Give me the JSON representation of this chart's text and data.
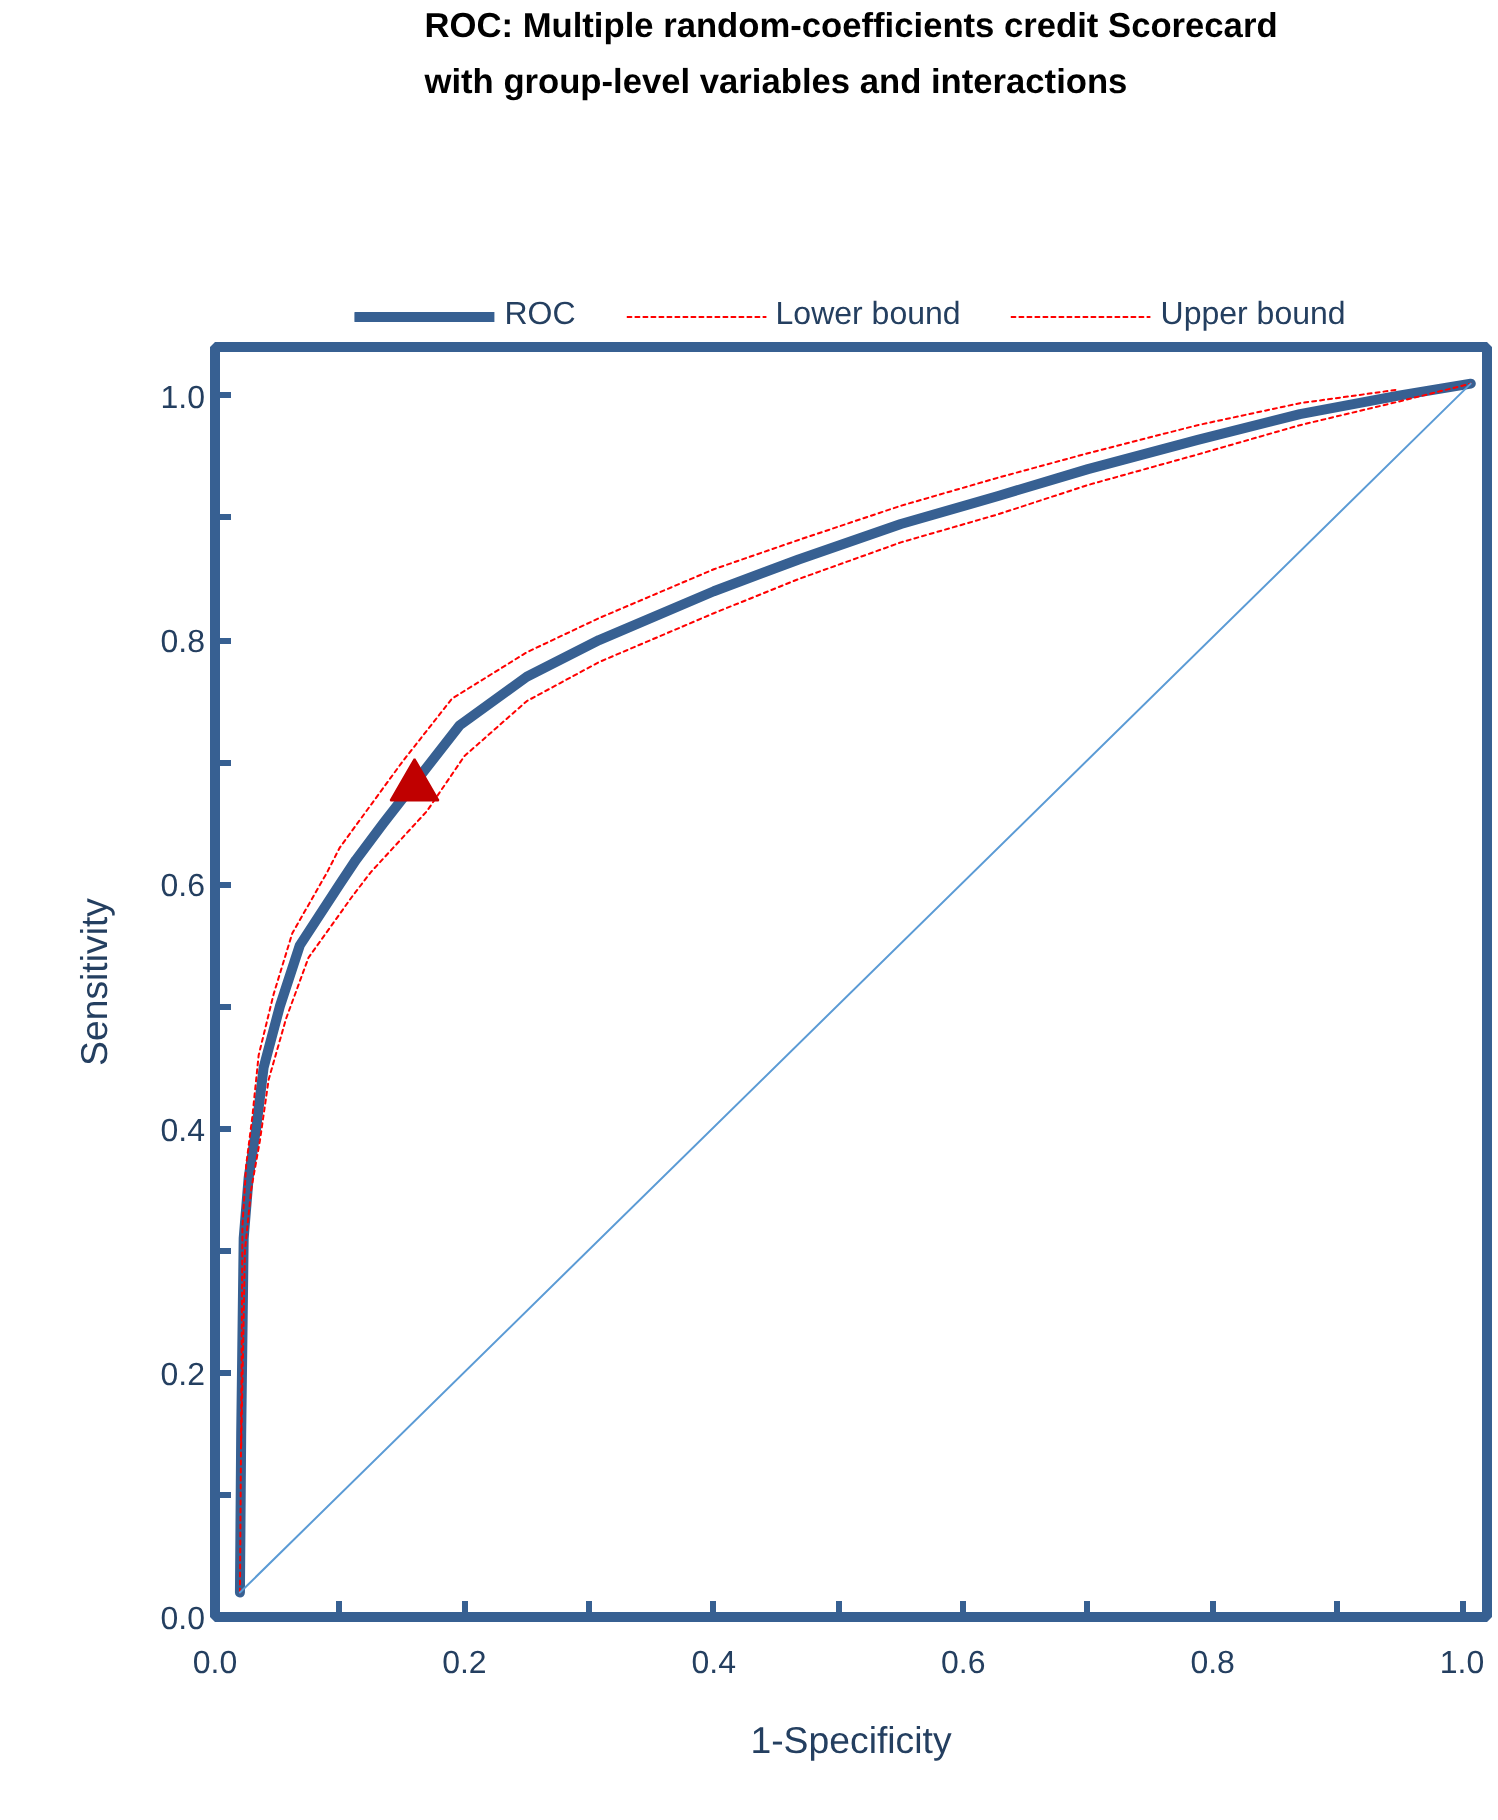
{
  "chart_data": {
    "type": "line",
    "title": "ROC: Multiple random-coefficients credit Scorecard\nwith group-level variables and interactions",
    "xlabel": "1-Specificity",
    "ylabel": "Sensitivity",
    "series": [
      {
        "name": "ROC",
        "color": "#376092",
        "x": [
          0.02,
          0.021,
          0.023,
          0.027,
          0.033,
          0.039,
          0.052,
          0.068,
          0.1,
          0.113,
          0.135,
          0.196,
          0.25,
          0.308,
          0.4,
          0.468,
          0.55,
          0.628,
          0.7,
          0.788,
          0.87,
          0.948,
          1.007
        ],
        "values": [
          0.02,
          0.15,
          0.31,
          0.36,
          0.4,
          0.45,
          0.5,
          0.55,
          0.6,
          0.62,
          0.65,
          0.73,
          0.77,
          0.8,
          0.84,
          0.866,
          0.895,
          0.918,
          0.94,
          0.964,
          0.985,
          1.0,
          1.01
        ]
      },
      {
        "name": "Lower bound",
        "color": "#ff0000",
        "line_style": "dotted",
        "x": [
          0.021,
          0.024,
          0.029,
          0.036,
          0.043,
          0.057,
          0.075,
          0.11,
          0.125,
          0.17,
          0.2,
          0.25,
          0.308,
          0.4,
          0.468,
          0.55,
          0.628,
          0.7,
          0.788,
          0.87,
          0.948,
          1.007
        ],
        "values": [
          0.14,
          0.3,
          0.35,
          0.39,
          0.44,
          0.49,
          0.54,
          0.59,
          0.61,
          0.66,
          0.705,
          0.75,
          0.782,
          0.822,
          0.85,
          0.88,
          0.903,
          0.927,
          0.952,
          0.976,
          0.995,
          1.01
        ]
      },
      {
        "name": "Upper bound",
        "color": "#ff0000",
        "line_style": "dotted",
        "x": [
          0.02,
          0.021,
          0.022,
          0.025,
          0.03,
          0.035,
          0.047,
          0.062,
          0.09,
          0.1,
          0.15,
          0.19,
          0.25,
          0.308,
          0.4,
          0.468,
          0.55,
          0.628,
          0.7,
          0.788,
          0.87,
          0.948
        ],
        "values": [
          0.02,
          0.16,
          0.32,
          0.37,
          0.41,
          0.46,
          0.51,
          0.56,
          0.61,
          0.63,
          0.7,
          0.752,
          0.79,
          0.818,
          0.858,
          0.882,
          0.91,
          0.933,
          0.953,
          0.976,
          0.994,
          1.005
        ]
      },
      {
        "color": "#5b9bd5",
        "x": [
          0.02,
          1.007
        ],
        "values": [
          0.02,
          1.01
        ]
      },
      {
        "type": "scatter",
        "marker": "triangle",
        "color": "#c00000",
        "x": [
          0.16
        ],
        "values": [
          0.68
        ]
      }
    ],
    "xlim": [
      0,
      1.02
    ],
    "ylim": [
      0,
      1.04
    ],
    "xticks": [
      {
        "value": 0,
        "label": "0.0"
      },
      {
        "value": 0.1,
        "label": null
      },
      {
        "value": 0.2,
        "label": "0.2"
      },
      {
        "value": 0.3,
        "label": null
      },
      0.4,
      {
        "value": 0.5,
        "label": null
      },
      0.6,
      {
        "value": 0.7,
        "label": null
      },
      0.8,
      {
        "value": 0.9,
        "label": null
      },
      {
        "value": 1,
        "label": "1.0"
      }
    ],
    "yticks": [
      {
        "value": 0,
        "label": "0.0"
      },
      {
        "value": 0.1,
        "label": null
      },
      0.2,
      {
        "value": 0.3,
        "label": null
      },
      0.4,
      {
        "value": 0.5,
        "label": null
      },
      0.6,
      {
        "value": 0.7,
        "label": null
      },
      0.8,
      {
        "value": 0.9,
        "label": null
      },
      {
        "value": 1,
        "label": "1.0"
      }
    ],
    "grid": false,
    "legend": "top"
  }
}
